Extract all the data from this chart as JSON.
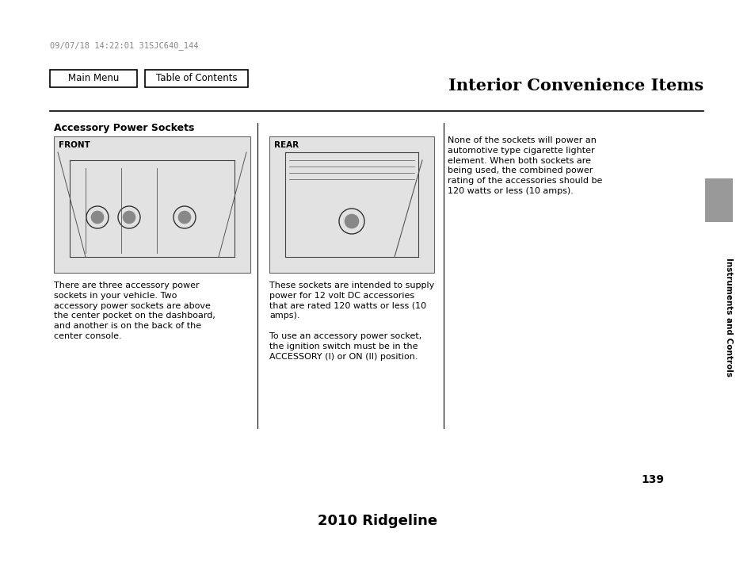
{
  "bg_color": "#ffffff",
  "timestamp": "09/07/18 14:22:01 31SJC640_144",
  "timestamp_color": "#888888",
  "timestamp_fontsize": 7.5,
  "nav_buttons": [
    "Main Menu",
    "Table of Contents"
  ],
  "section_title": "Interior Convenience Items",
  "section_title_fontsize": 15,
  "subsection_title": "Accessory Power Sockets",
  "subsection_title_fontsize": 9,
  "front_label": "FRONT",
  "rear_label": "REAR",
  "col1_text": "There are three accessory power\nsockets in your vehicle. Two\naccessory power sockets are above\nthe center pocket on the dashboard,\nand another is on the back of the\ncenter console.",
  "col2_text": "These sockets are intended to supply\npower for 12 volt DC accessories\nthat are rated 120 watts or less (10\namps).\n\nTo use an accessory power socket,\nthe ignition switch must be in the\nACCESSORY (I) or ON (II) position.",
  "col3_text": "None of the sockets will power an\nautomotive type cigarette lighter\nelement. When both sockets are\nbeing used, the combined power\nrating of the accessories should be\n120 watts or less (10 amps).",
  "text_fontsize": 8,
  "image_bg": "#e2e2e2",
  "sidebar_color": "#999999",
  "sidebar_text": "Instruments and Controls",
  "page_number": "139",
  "footer_text": "2010 Ridgeline",
  "footer_fontsize": 13
}
